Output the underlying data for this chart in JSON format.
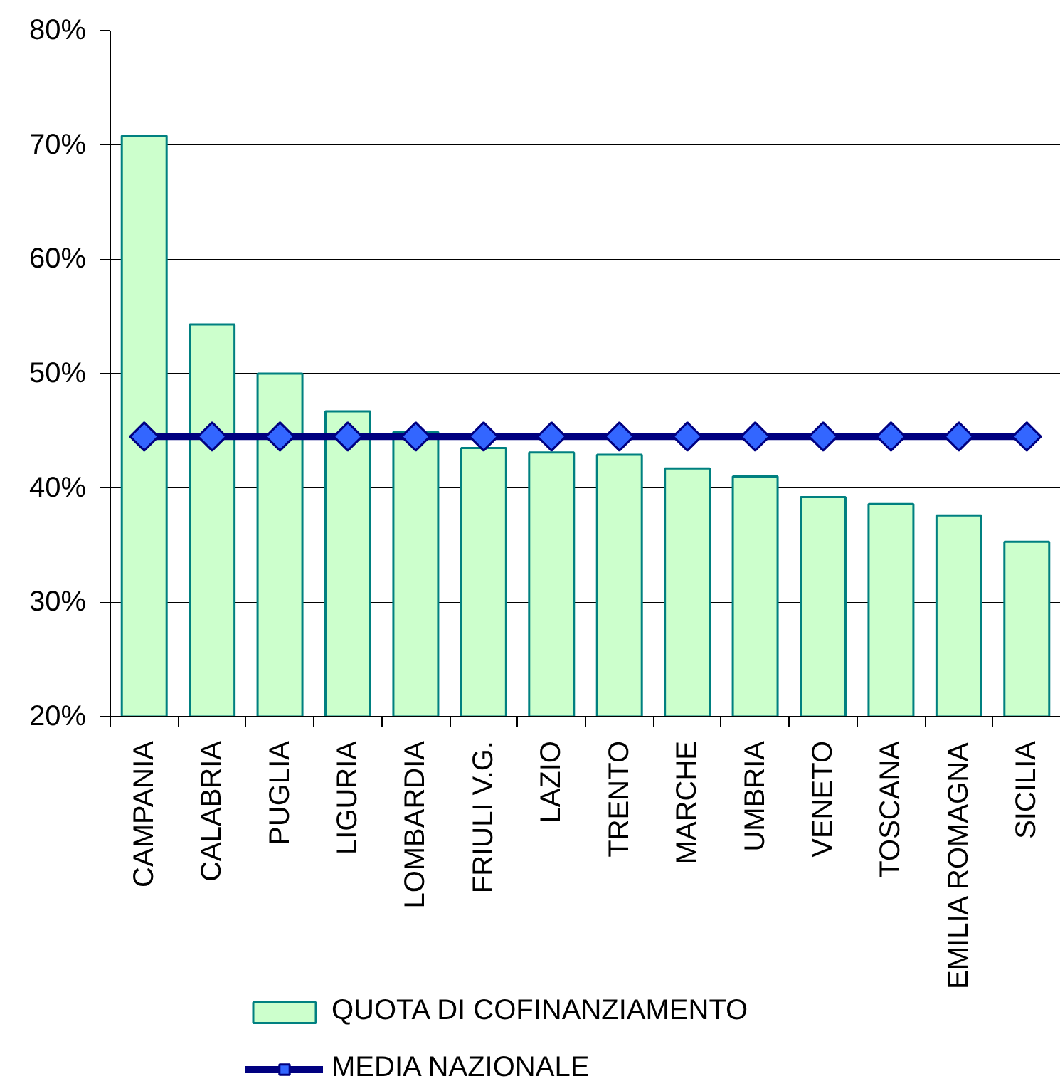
{
  "chart_data": {
    "type": "bar",
    "categories": [
      "CAMPANIA",
      "CALABRIA",
      "PUGLIA",
      "LIGURIA",
      "LOMBARDIA",
      "FRIULI V.G.",
      "LAZIO",
      "TRENTO",
      "MARCHE",
      "UMBRIA",
      "VENETO",
      "TOSCANA",
      "EMILIA ROMAGNA",
      "SICILIA"
    ],
    "series": [
      {
        "name": "QUOTA DI COFINANZIAMENTO",
        "color": "#ccffcc",
        "values": [
          70.8,
          54.3,
          50.0,
          46.7,
          44.9,
          43.5,
          43.1,
          42.9,
          41.7,
          41.0,
          39.2,
          38.6,
          37.6,
          35.3
        ]
      },
      {
        "name": "MEDIA NAZIONALE",
        "type": "line",
        "color": "#000080",
        "values": [
          44.5,
          44.5,
          44.5,
          44.5,
          44.5,
          44.5,
          44.5,
          44.5,
          44.5,
          44.5,
          44.5,
          44.5,
          44.5,
          44.5
        ]
      }
    ],
    "ylim": [
      20,
      80
    ],
    "yticks": [
      {
        "value": 20,
        "label": "20%"
      },
      {
        "value": 30,
        "label": "30%"
      },
      {
        "value": 40,
        "label": "40%"
      },
      {
        "value": 50,
        "label": "50%"
      },
      {
        "value": 60,
        "label": "60%"
      },
      {
        "value": 70,
        "label": "70%"
      },
      {
        "value": 80,
        "label": "80%"
      }
    ],
    "grid": "y",
    "legend": "bottom",
    "marker": "diamond"
  }
}
